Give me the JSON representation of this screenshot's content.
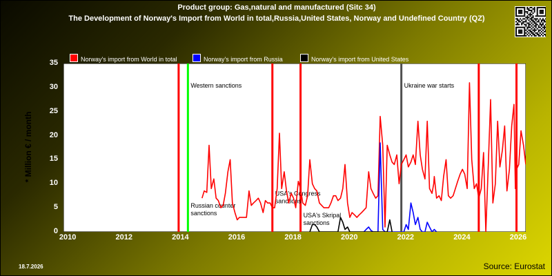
{
  "header": {
    "title_line1": "Product group: Gas,natural and manufactured (Sitc 34)",
    "title_line2": "The Development of Norway's Import from World in total,Russia,United States, Norway and Undefined Country (QZ)"
  },
  "footer": {
    "date": "18.7.2026",
    "source": "Source: Eurostat"
  },
  "colors": {
    "world": "#ff0000",
    "russia": "#0000ff",
    "united_states": "#000000",
    "sanction_line": "#ff0000",
    "western_sanction_line": "#00ff00",
    "ukraine_war_line": "#505050",
    "plot_background": "#ffffff"
  },
  "chart_data": {
    "type": "line",
    "ylabel": "* Million € / month",
    "xlim": [
      2009.83,
      2026.25
    ],
    "ylim": [
      0,
      35
    ],
    "yticks": [
      0,
      5,
      10,
      15,
      20,
      25,
      30,
      35
    ],
    "xticks": [
      2010,
      2012,
      2014,
      2016,
      2018,
      2020,
      2022,
      2024,
      2026
    ],
    "grid": false,
    "legend_position": "top-left",
    "series": [
      {
        "name": "Norway's import from World in total",
        "key": "world",
        "points": [
          [
            2014.75,
            7.0
          ],
          [
            2014.83,
            8.5
          ],
          [
            2014.92,
            8.2
          ],
          [
            2015.0,
            18.0
          ],
          [
            2015.08,
            9.0
          ],
          [
            2015.17,
            11.0
          ],
          [
            2015.25,
            7.0
          ],
          [
            2015.33,
            6.5
          ],
          [
            2015.42,
            5.0
          ],
          [
            2015.5,
            5.5
          ],
          [
            2015.58,
            8.0
          ],
          [
            2015.67,
            12.5
          ],
          [
            2015.75,
            15.0
          ],
          [
            2015.83,
            6.0
          ],
          [
            2015.92,
            4.0
          ],
          [
            2016.0,
            2.5
          ],
          [
            2016.08,
            3.0
          ],
          [
            2016.17,
            3.0
          ],
          [
            2016.25,
            3.0
          ],
          [
            2016.33,
            3.0
          ],
          [
            2016.42,
            8.5
          ],
          [
            2016.5,
            5.5
          ],
          [
            2016.58,
            6.0
          ],
          [
            2016.67,
            6.5
          ],
          [
            2016.75,
            7.0
          ],
          [
            2016.83,
            6.0
          ],
          [
            2016.92,
            4.0
          ],
          [
            2017.0,
            6.5
          ],
          [
            2017.08,
            6.0
          ],
          [
            2017.17,
            6.0
          ],
          [
            2017.25,
            5.0
          ],
          [
            2017.33,
            5.0
          ],
          [
            2017.42,
            9.0
          ],
          [
            2017.5,
            20.5
          ],
          [
            2017.58,
            9.0
          ],
          [
            2017.67,
            12.5
          ],
          [
            2017.75,
            8.5
          ],
          [
            2017.83,
            6.0
          ],
          [
            2017.92,
            8.0
          ],
          [
            2018.0,
            7.0
          ],
          [
            2018.08,
            5.0
          ],
          [
            2018.17,
            10.5
          ],
          [
            2018.25,
            9.0
          ],
          [
            2018.33,
            6.0
          ],
          [
            2018.42,
            5.5
          ],
          [
            2018.5,
            7.5
          ],
          [
            2018.58,
            15.0
          ],
          [
            2018.67,
            10.0
          ],
          [
            2018.75,
            9.0
          ],
          [
            2018.83,
            8.5
          ],
          [
            2018.92,
            6.0
          ],
          [
            2019.0,
            5.5
          ],
          [
            2019.08,
            5.0
          ],
          [
            2019.17,
            5.0
          ],
          [
            2019.25,
            5.0
          ],
          [
            2019.33,
            6.0
          ],
          [
            2019.42,
            7.5
          ],
          [
            2019.5,
            7.5
          ],
          [
            2019.58,
            6.5
          ],
          [
            2019.67,
            7.0
          ],
          [
            2019.75,
            9.0
          ],
          [
            2019.83,
            14.0
          ],
          [
            2019.92,
            6.0
          ],
          [
            2020.0,
            3.0
          ],
          [
            2020.08,
            4.0
          ],
          [
            2020.17,
            3.5
          ],
          [
            2020.25,
            3.0
          ],
          [
            2020.33,
            3.5
          ],
          [
            2020.42,
            4.0
          ],
          [
            2020.5,
            4.5
          ],
          [
            2020.58,
            5.0
          ],
          [
            2020.67,
            12.5
          ],
          [
            2020.75,
            9.0
          ],
          [
            2020.83,
            8.0
          ],
          [
            2020.92,
            7.0
          ],
          [
            2021.0,
            7.5
          ],
          [
            2021.08,
            24.0
          ],
          [
            2021.17,
            18.0
          ],
          [
            2021.25,
            1.0
          ],
          [
            2021.33,
            18.0
          ],
          [
            2021.42,
            16.0
          ],
          [
            2021.5,
            14.5
          ],
          [
            2021.58,
            14.0
          ],
          [
            2021.67,
            16.0
          ],
          [
            2021.75,
            10.0
          ],
          [
            2021.83,
            14.0
          ],
          [
            2021.92,
            15.0
          ],
          [
            2022.0,
            16.0
          ],
          [
            2022.08,
            13.5
          ],
          [
            2022.17,
            14.5
          ],
          [
            2022.25,
            16.0
          ],
          [
            2022.33,
            14.0
          ],
          [
            2022.42,
            23.0
          ],
          [
            2022.5,
            16.0
          ],
          [
            2022.58,
            13.0
          ],
          [
            2022.67,
            11.0
          ],
          [
            2022.75,
            23.0
          ],
          [
            2022.83,
            9.0
          ],
          [
            2022.92,
            8.0
          ],
          [
            2022.98,
            10.0
          ],
          [
            2023.0,
            11.5
          ],
          [
            2023.08,
            7.0
          ],
          [
            2023.17,
            7.5
          ],
          [
            2023.25,
            6.5
          ],
          [
            2023.33,
            11.5
          ],
          [
            2023.42,
            15.0
          ],
          [
            2023.5,
            7.5
          ],
          [
            2023.58,
            7.0
          ],
          [
            2023.67,
            7.5
          ],
          [
            2023.75,
            9.0
          ],
          [
            2023.83,
            10.5
          ],
          [
            2023.92,
            12.0
          ],
          [
            2024.0,
            13.0
          ],
          [
            2024.08,
            12.0
          ],
          [
            2024.17,
            9.0
          ],
          [
            2024.25,
            31.0
          ],
          [
            2024.33,
            15.0
          ],
          [
            2024.42,
            9.0
          ],
          [
            2024.5,
            10.0
          ],
          [
            2024.58,
            7.0
          ],
          [
            2024.67,
            9.0
          ],
          [
            2024.75,
            16.5
          ],
          [
            2024.83,
            0.0
          ],
          [
            2024.92,
            14.0
          ],
          [
            2025.0,
            27.5
          ],
          [
            2025.08,
            6.0
          ],
          [
            2025.17,
            10.0
          ],
          [
            2025.25,
            23.0
          ],
          [
            2025.33,
            13.5
          ],
          [
            2025.42,
            17.0
          ],
          [
            2025.5,
            22.0
          ],
          [
            2025.58,
            8.5
          ],
          [
            2025.67,
            13.0
          ],
          [
            2025.75,
            22.0
          ],
          [
            2025.83,
            26.5
          ],
          [
            2025.88,
            9.0
          ],
          [
            2025.92,
            13.0
          ],
          [
            2026.0,
            14.0
          ],
          [
            2026.08,
            21.0
          ],
          [
            2026.17,
            18.0
          ],
          [
            2026.25,
            14.0
          ]
        ]
      },
      {
        "name": "Norway's import from Russia",
        "key": "russia",
        "points": [
          [
            2020.5,
            0.0
          ],
          [
            2020.58,
            0.5
          ],
          [
            2020.67,
            1.0
          ],
          [
            2020.75,
            0.3
          ],
          [
            2020.83,
            0.0
          ],
          [
            2021.0,
            0.0
          ],
          [
            2021.08,
            18.5
          ],
          [
            2021.17,
            0.5
          ],
          [
            2021.25,
            0.0
          ],
          [
            2021.92,
            0.0
          ],
          [
            2022.0,
            1.5
          ],
          [
            2022.08,
            0.5
          ],
          [
            2022.17,
            6.0
          ],
          [
            2022.25,
            4.0
          ],
          [
            2022.33,
            1.5
          ],
          [
            2022.42,
            3.0
          ],
          [
            2022.5,
            0.5
          ],
          [
            2022.58,
            0.0
          ],
          [
            2022.67,
            0.0
          ],
          [
            2022.75,
            2.0
          ],
          [
            2022.83,
            1.0
          ],
          [
            2022.92,
            0.0
          ],
          [
            2023.0,
            0.5
          ],
          [
            2023.08,
            0.0
          ]
        ]
      },
      {
        "name": "Norway's import from United States",
        "key": "united_states",
        "points": [
          [
            2018.58,
            0.0
          ],
          [
            2018.67,
            1.5
          ],
          [
            2018.75,
            1.5
          ],
          [
            2018.83,
            1.0
          ],
          [
            2018.92,
            0.0
          ],
          [
            2019.58,
            0.0
          ],
          [
            2019.67,
            3.0
          ],
          [
            2019.75,
            2.0
          ],
          [
            2019.83,
            0.5
          ],
          [
            2019.92,
            1.0
          ],
          [
            2020.0,
            0.0
          ],
          [
            2021.33,
            0.0
          ],
          [
            2021.42,
            2.5
          ],
          [
            2021.5,
            0.0
          ]
        ]
      }
    ],
    "events": [
      {
        "x": 2013.92,
        "color_key": "sanction_line"
      },
      {
        "x": 2014.25,
        "color_key": "western_sanction_line",
        "label": "Western sanctions",
        "label_y": 30
      },
      {
        "x": 2014.25,
        "label": "Russian counter sanctions",
        "label_y": 5,
        "lines": [
          "Russian counter",
          "sanctions"
        ]
      },
      {
        "x": 2017.25,
        "color_key": "sanction_line",
        "lines": [
          "USA's Congress",
          "sanctions"
        ],
        "label_y": 7.5
      },
      {
        "x": 2018.25,
        "color_key": "sanction_line",
        "lines": [
          "USA's Skripal",
          "sanctions"
        ],
        "label_y": 3.0
      },
      {
        "x": 2021.83,
        "color_key": "ukraine_war_line",
        "label": "Ukraine war starts",
        "label_y": 30
      },
      {
        "x": 2024.58,
        "color_key": "sanction_line"
      },
      {
        "x": 2025.92,
        "color_key": "sanction_line"
      }
    ]
  }
}
